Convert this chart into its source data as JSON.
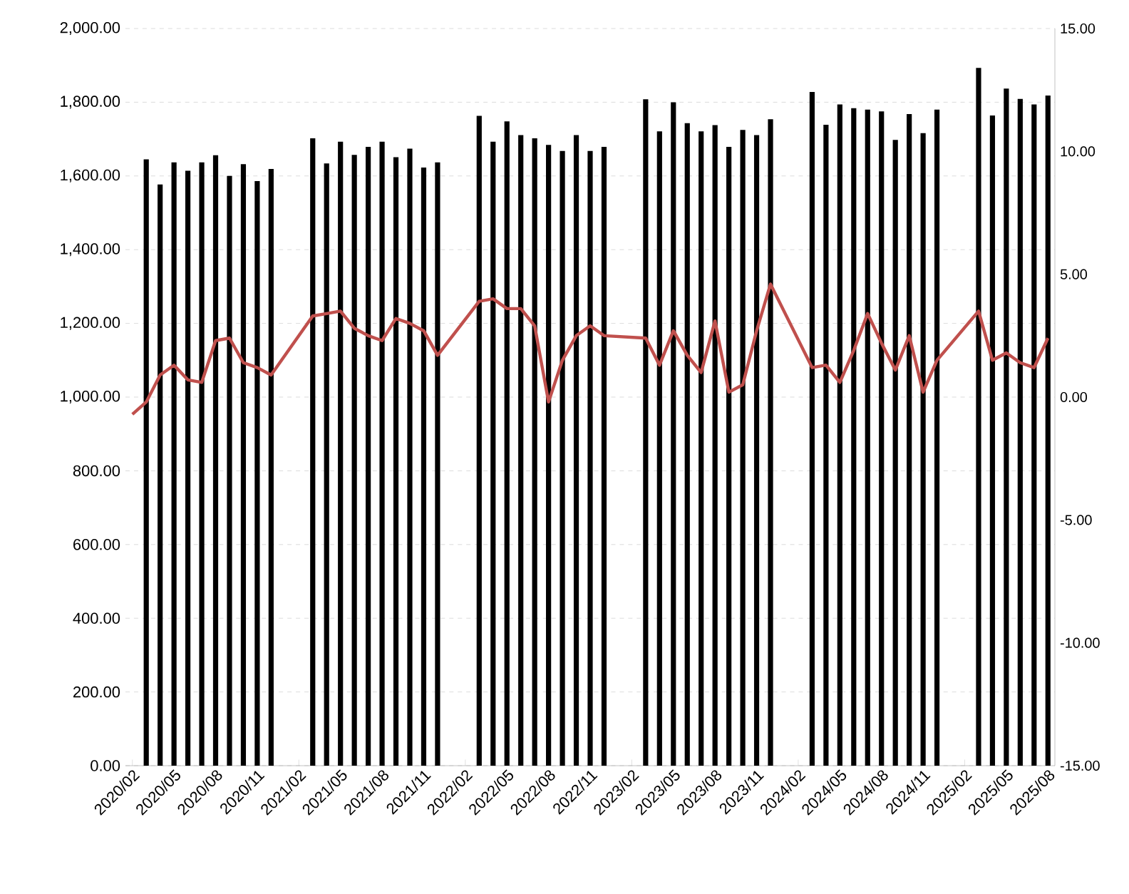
{
  "chart_data": {
    "type": "bar",
    "categories": [
      "2020/02",
      null,
      null,
      "2020/05",
      null,
      null,
      "2020/08",
      null,
      null,
      "2020/11",
      null,
      null,
      "2021/02",
      null,
      null,
      "2021/05",
      null,
      null,
      "2021/08",
      null,
      null,
      "2021/11",
      null,
      null,
      "2022/02",
      null,
      null,
      "2022/05",
      null,
      null,
      "2022/08",
      null,
      null,
      "2022/11",
      null,
      null,
      "2023/02",
      null,
      null,
      "2023/05",
      null,
      null,
      "2023/08",
      null,
      null,
      "2023/11",
      null,
      null,
      "2024/02",
      null,
      null,
      "2024/05",
      null,
      null,
      "2024/08",
      null,
      null,
      "2024/11",
      null,
      null,
      "2025/02",
      null,
      null,
      "2025/05",
      null,
      null,
      "2025/08"
    ],
    "series": [
      {
        "color": "#000000",
        "values": [
          null,
          1645,
          1577,
          1637,
          1614,
          1637,
          1656,
          1600,
          1632,
          1586,
          1619,
          null,
          null,
          1702,
          1634,
          1693,
          1657,
          1679,
          1693,
          1651,
          1674,
          1623,
          1637,
          null,
          null,
          1763,
          1693,
          1748,
          1711,
          1702,
          1684,
          1668,
          1711,
          1668,
          1679,
          null,
          null,
          1808,
          1721,
          1800,
          1743,
          1721,
          1738,
          1679,
          1725,
          1711,
          1754,
          null,
          null,
          1828,
          1739,
          1794,
          1784,
          1780,
          1775,
          1698,
          1768,
          1716,
          1780,
          null,
          null,
          1893,
          1764,
          1837,
          1809,
          1794,
          1818
        ]
      },
      {
        "type": "line",
        "axis": "y2",
        "color": "#c0504d",
        "values": [
          -0.7,
          -0.2,
          0.9,
          1.3,
          0.7,
          0.6,
          2.3,
          2.4,
          1.4,
          1.2,
          0.9,
          null,
          null,
          3.3,
          3.4,
          3.5,
          2.8,
          2.5,
          2.3,
          3.2,
          3.0,
          2.7,
          1.7,
          null,
          null,
          3.9,
          4.0,
          3.6,
          3.6,
          2.9,
          -0.2,
          1.5,
          2.5,
          2.9,
          2.5,
          null,
          null,
          2.4,
          1.3,
          2.7,
          1.7,
          1.0,
          3.1,
          0.2,
          0.5,
          2.7,
          4.6,
          null,
          null,
          1.2,
          1.3,
          0.6,
          1.9,
          3.4,
          2.2,
          1.1,
          2.5,
          0.2,
          1.5,
          null,
          null,
          3.5,
          1.5,
          1.8,
          1.4,
          1.2,
          2.4
        ]
      }
    ],
    "ylim": [
      0,
      2000
    ],
    "yticks": [
      {
        "value": 0,
        "label": "0.00"
      },
      {
        "value": 200,
        "label": "200.00"
      },
      {
        "value": 400,
        "label": "400.00"
      },
      {
        "value": 600,
        "label": "600.00"
      },
      {
        "value": 800,
        "label": "800.00"
      },
      {
        "value": 1000,
        "label": "1,000.00"
      },
      {
        "value": 1200,
        "label": "1,200.00"
      },
      {
        "value": 1400,
        "label": "1,400.00"
      },
      {
        "value": 1600,
        "label": "1,600.00"
      },
      {
        "value": 1800,
        "label": "1,800.00"
      },
      {
        "value": 2000,
        "label": "2,000.00"
      }
    ],
    "y2lim": [
      -15,
      15
    ],
    "y2ticks": [
      {
        "value": -15,
        "label": "-15.00"
      },
      {
        "value": -10,
        "label": "-10.00"
      },
      {
        "value": -5,
        "label": "-5.00"
      },
      {
        "value": 0,
        "label": "0.00"
      },
      {
        "value": 5,
        "label": "5.00"
      },
      {
        "value": 10,
        "label": "10.00"
      },
      {
        "value": 15,
        "label": "15.00"
      }
    ],
    "grid": "y"
  }
}
